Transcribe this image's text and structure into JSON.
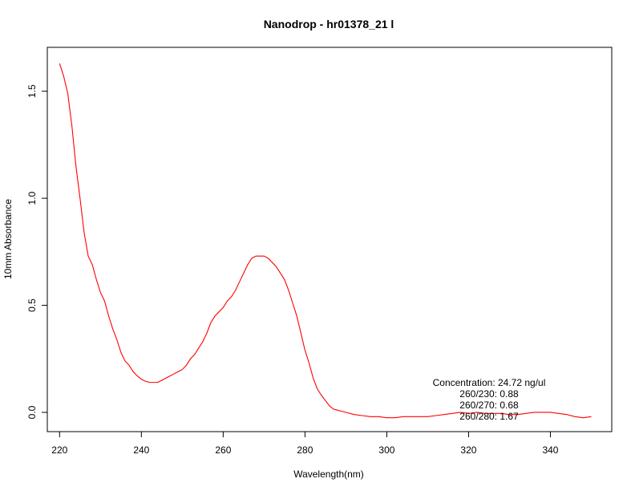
{
  "chart_data": {
    "type": "line",
    "title": "Nanodrop - hr01378_21 l",
    "xlabel": "Wavelength(nm)",
    "ylabel": "10mm Absorbance",
    "xlim": [
      217,
      355
    ],
    "ylim": [
      -0.09,
      1.705
    ],
    "x_ticks": [
      220,
      240,
      260,
      280,
      300,
      320,
      340
    ],
    "y_ticks": [
      0.0,
      0.5,
      1.0,
      1.5
    ],
    "x_tick_labels": [
      "220",
      "240",
      "260",
      "280",
      "300",
      "320",
      "340"
    ],
    "y_tick_labels": [
      "0.0",
      "0.5",
      "1.0",
      "1.5"
    ],
    "grid": false,
    "series": [
      {
        "color": "#ff0000",
        "x": [
          220,
          221,
          222,
          223,
          224,
          225,
          226,
          227,
          228,
          229,
          230,
          231,
          232,
          233,
          234,
          235,
          236,
          237,
          238,
          239,
          240,
          241,
          242,
          243,
          244,
          245,
          246,
          247,
          248,
          249,
          250,
          251,
          252,
          253,
          254,
          255,
          256,
          257,
          258,
          259,
          260,
          261,
          262,
          263,
          264,
          265,
          266,
          267,
          268,
          269,
          270,
          271,
          272,
          273,
          274,
          275,
          276,
          277,
          278,
          279,
          280,
          281,
          282,
          283,
          284,
          285,
          286,
          287,
          288,
          289,
          290,
          292,
          294,
          296,
          298,
          300,
          302,
          304,
          306,
          308,
          310,
          312,
          314,
          316,
          318,
          320,
          322,
          324,
          326,
          328,
          330,
          332,
          334,
          336,
          338,
          340,
          342,
          344,
          346,
          348,
          350
        ],
        "y": [
          1.63,
          1.57,
          1.49,
          1.34,
          1.15,
          1.0,
          0.84,
          0.73,
          0.69,
          0.62,
          0.56,
          0.52,
          0.45,
          0.39,
          0.34,
          0.28,
          0.24,
          0.22,
          0.19,
          0.17,
          0.155,
          0.145,
          0.14,
          0.14,
          0.14,
          0.15,
          0.16,
          0.17,
          0.18,
          0.19,
          0.2,
          0.22,
          0.25,
          0.27,
          0.3,
          0.33,
          0.37,
          0.42,
          0.45,
          0.47,
          0.49,
          0.52,
          0.54,
          0.57,
          0.61,
          0.65,
          0.69,
          0.72,
          0.73,
          0.73,
          0.73,
          0.72,
          0.7,
          0.68,
          0.65,
          0.62,
          0.57,
          0.51,
          0.45,
          0.37,
          0.29,
          0.23,
          0.16,
          0.11,
          0.08,
          0.055,
          0.03,
          0.015,
          0.01,
          0.005,
          0.0,
          -0.01,
          -0.015,
          -0.02,
          -0.02,
          -0.025,
          -0.025,
          -0.02,
          -0.02,
          -0.02,
          -0.02,
          -0.015,
          -0.01,
          -0.005,
          0.0,
          -0.005,
          0.0,
          -0.005,
          -0.005,
          -0.005,
          -0.01,
          -0.01,
          -0.005,
          0.0,
          0.0,
          0.0,
          -0.005,
          -0.01,
          -0.02,
          -0.025,
          -0.02
        ]
      }
    ],
    "annotations": [
      "Concentration: 24.72 ng/ul",
      "260/230: 0.88",
      "260/270: 0.68",
      "260/280: 1.67"
    ]
  }
}
